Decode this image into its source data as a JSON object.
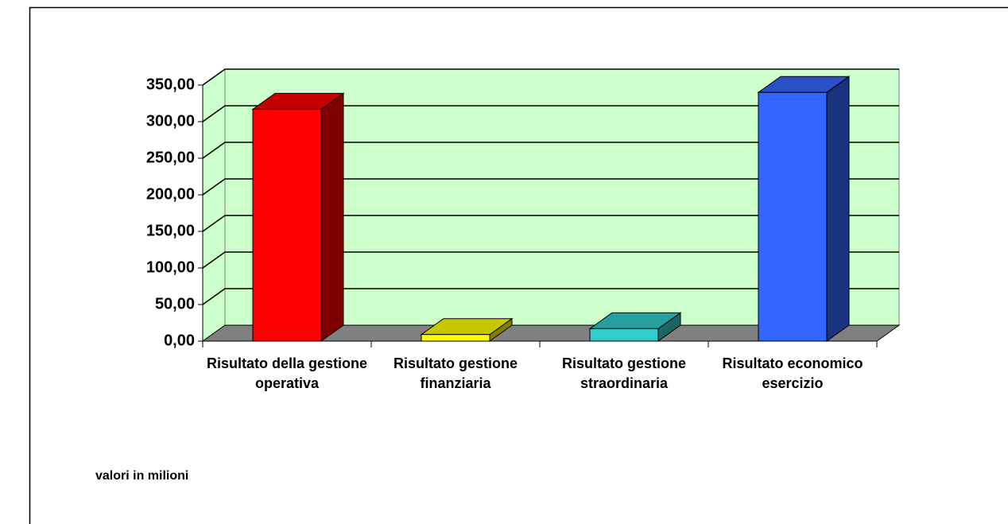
{
  "chart_data": {
    "type": "bar3d",
    "categories": [
      "Risultato della gestione operativa",
      "Risultato gestione finanziaria",
      "Risultato gestione straordinaria",
      "Risultato economico esercizio"
    ],
    "values": [
      317,
      9,
      17,
      340
    ],
    "colors": [
      "#ff0000",
      "#ffff00",
      "#33cccc",
      "#3366ff"
    ],
    "ylim": [
      0,
      350
    ],
    "yticks": [
      {
        "value": 0,
        "label": "0,00"
      },
      {
        "value": 50,
        "label": "50,00"
      },
      {
        "value": 100,
        "label": "100,00"
      },
      {
        "value": 150,
        "label": "150,00"
      },
      {
        "value": 200,
        "label": "200,00"
      },
      {
        "value": 250,
        "label": "250,00"
      },
      {
        "value": 300,
        "label": "300,00"
      },
      {
        "value": 350,
        "label": "350,00"
      }
    ],
    "grid": true,
    "note": "valori in milioni"
  }
}
